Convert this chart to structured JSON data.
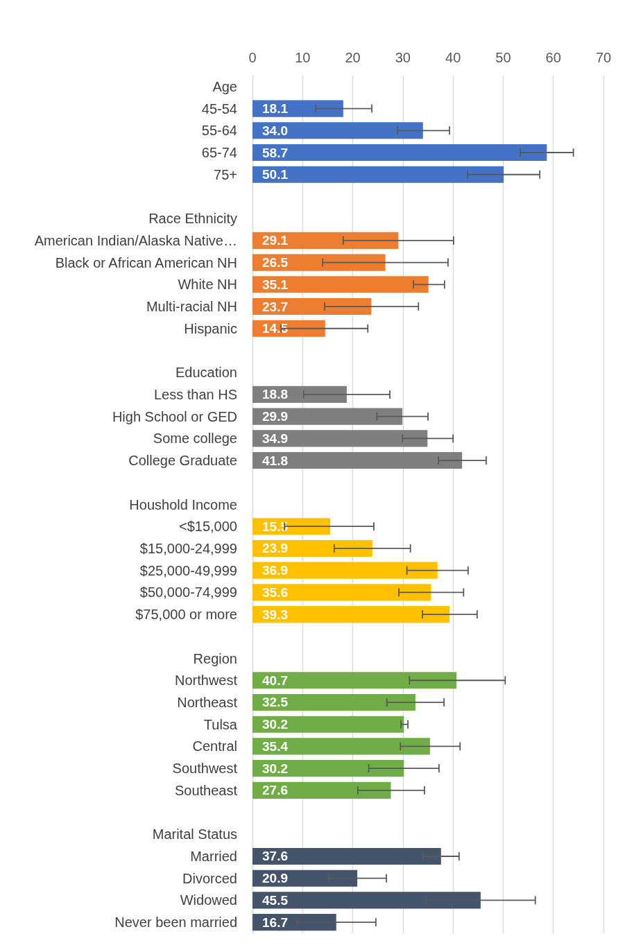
{
  "chart_data": {
    "type": "bar",
    "orientation": "horizontal",
    "categories": [
      "Age",
      "45-54",
      "55-64",
      "65-74",
      "75+",
      null,
      "Race Ethnicity",
      "American Indian/Alaska Native…",
      "Black or African American NH",
      "White NH",
      "Multi-racial NH",
      "Hispanic",
      null,
      "Education",
      "Less than HS",
      "High School or GED",
      "Some college",
      "College Graduate",
      null,
      "Houshold Income",
      "<$15,000",
      "$15,000-24,999",
      "$25,000-49,999",
      "$50,000-74,999",
      "$75,000 or more",
      null,
      "Region",
      "Northwest",
      "Northeast",
      "Tulsa",
      "Central",
      "Southwest",
      "Southeast",
      null,
      "Marital Status",
      "Married",
      "Divorced",
      "Widowed",
      "Never been married"
    ],
    "values": [
      null,
      18.1,
      34.0,
      58.7,
      50.1,
      null,
      null,
      29.1,
      26.5,
      35.1,
      23.7,
      14.5,
      null,
      null,
      18.8,
      29.9,
      34.9,
      41.8,
      null,
      null,
      15.5,
      23.9,
      36.9,
      35.6,
      39.3,
      null,
      null,
      40.7,
      32.5,
      30.2,
      35.4,
      30.2,
      27.6,
      null,
      null,
      37.6,
      20.9,
      45.5,
      16.7
    ],
    "colors": [
      "#4472c4",
      "#4472c4",
      "#4472c4",
      "#4472c4",
      "#4472c4",
      "#4472c4",
      "#ed7d31",
      "#ed7d31",
      "#ed7d31",
      "#ed7d31",
      "#ed7d31",
      "#ed7d31",
      "#ed7d31",
      "#7f7f7f",
      "#7f7f7f",
      "#7f7f7f",
      "#7f7f7f",
      "#7f7f7f",
      "#7f7f7f",
      "#ffc000",
      "#ffc000",
      "#ffc000",
      "#ffc000",
      "#ffc000",
      "#ffc000",
      "#ffc000",
      "#70ad47",
      "#70ad47",
      "#70ad47",
      "#70ad47",
      "#70ad47",
      "#70ad47",
      "#70ad47",
      "#70ad47",
      "#44546a",
      "#44546a",
      "#44546a",
      "#44546a",
      "#44546a"
    ],
    "errors": [
      null,
      [
        12.6,
        23.8
      ],
      [
        28.9,
        39.3
      ],
      [
        53.4,
        64.0
      ],
      [
        42.9,
        57.3
      ],
      null,
      null,
      [
        18.1,
        40.1
      ],
      [
        14.0,
        39.0
      ],
      [
        32.1,
        38.3
      ],
      [
        14.4,
        33.1
      ],
      [
        5.7,
        23.0
      ],
      null,
      null,
      [
        10.2,
        27.4
      ],
      [
        24.8,
        35.0
      ],
      [
        29.9,
        40.0
      ],
      [
        37.1,
        46.6
      ],
      null,
      null,
      [
        6.4,
        24.2
      ],
      [
        16.3,
        31.5
      ],
      [
        30.8,
        43.0
      ],
      [
        29.2,
        42.1
      ],
      [
        33.9,
        44.8
      ],
      null,
      null,
      [
        31.3,
        50.4
      ],
      [
        26.8,
        38.2
      ],
      [
        29.6,
        31.0
      ],
      [
        29.5,
        41.4
      ],
      [
        23.2,
        37.2
      ],
      [
        21.0,
        34.3
      ],
      null,
      null,
      [
        34.0,
        41.2
      ],
      [
        15.2,
        26.7
      ],
      [
        34.6,
        56.4
      ],
      [
        8.9,
        24.6
      ]
    ],
    "value_labels": [
      null,
      "18.1",
      "34.0",
      "58.7",
      "50.1",
      null,
      null,
      "29.1",
      "26.5",
      "35.1",
      "23.7",
      "14.5",
      null,
      null,
      "18.8",
      "29.9",
      "34.9",
      "41.8",
      null,
      null,
      "15.5",
      "23.9",
      "36.9",
      "35.6",
      "39.3",
      null,
      null,
      "40.7",
      "32.5",
      "30.2",
      "35.4",
      "30.2",
      "27.6",
      null,
      null,
      "37.6",
      "20.9",
      "45.5",
      "16.7"
    ],
    "xlim": [
      0,
      70
    ],
    "xticks": [
      0,
      10,
      20,
      30,
      40,
      50,
      60,
      70
    ],
    "grid": "x"
  }
}
